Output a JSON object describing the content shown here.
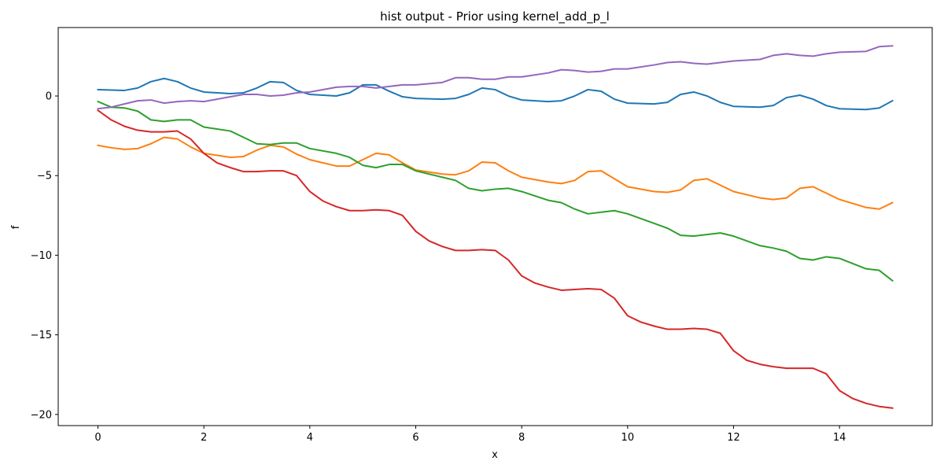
{
  "chart_data": {
    "type": "line",
    "title": "hist output - Prior using kernel_add_p_l",
    "xlabel": "x",
    "ylabel": "f",
    "xlim": [
      -0.75,
      15.75
    ],
    "ylim": [
      -20.7,
      4.3
    ],
    "xticks": [
      0,
      2,
      4,
      6,
      8,
      10,
      12,
      14
    ],
    "yticks": [
      0,
      -5,
      -10,
      -15,
      -20
    ],
    "ytick_labels": [
      "0",
      "−5",
      "−10",
      "−15",
      "−20"
    ],
    "grid": false,
    "legend": "none",
    "series": [
      {
        "color": "#1f77b4",
        "x": [
          0,
          0.5,
          0.75,
          1.0,
          1.25,
          1.5,
          1.75,
          2.0,
          2.5,
          2.75,
          3.0,
          3.25,
          3.5,
          3.75,
          4.0,
          4.5,
          4.75,
          5.0,
          5.25,
          5.5,
          5.75,
          6.0,
          6.5,
          6.75,
          7.0,
          7.25,
          7.5,
          7.75,
          8.0,
          8.5,
          8.75,
          9.0,
          9.25,
          9.5,
          9.75,
          10.0,
          10.5,
          10.75,
          11.0,
          11.25,
          11.5,
          11.75,
          12.0,
          12.5,
          12.75,
          13.0,
          13.25,
          13.5,
          13.75,
          14.0,
          14.5,
          14.75,
          15.0
        ],
        "y": [
          0.4,
          0.35,
          0.5,
          0.9,
          1.1,
          0.9,
          0.5,
          0.25,
          0.15,
          0.2,
          0.5,
          0.9,
          0.85,
          0.35,
          0.1,
          0.0,
          0.2,
          0.7,
          0.7,
          0.3,
          -0.05,
          -0.15,
          -0.2,
          -0.15,
          0.1,
          0.5,
          0.4,
          0.0,
          -0.25,
          -0.35,
          -0.3,
          0.0,
          0.4,
          0.3,
          -0.2,
          -0.45,
          -0.5,
          -0.4,
          0.1,
          0.25,
          0.0,
          -0.4,
          -0.65,
          -0.7,
          -0.6,
          -0.1,
          0.05,
          -0.2,
          -0.6,
          -0.8,
          -0.85,
          -0.75,
          -0.3
        ]
      },
      {
        "color": "#ff7f0e",
        "x": [
          0,
          0.25,
          0.5,
          0.75,
          1.0,
          1.25,
          1.5,
          1.75,
          2.0,
          2.5,
          2.75,
          3.0,
          3.25,
          3.5,
          3.75,
          4.0,
          4.5,
          4.75,
          5.0,
          5.25,
          5.5,
          5.75,
          6.0,
          6.5,
          6.75,
          7.0,
          7.25,
          7.5,
          7.75,
          8.0,
          8.5,
          8.75,
          9.0,
          9.25,
          9.5,
          9.75,
          10.0,
          10.5,
          10.75,
          11.0,
          11.25,
          11.5,
          11.75,
          12.0,
          12.5,
          12.75,
          13.0,
          13.25,
          13.5,
          13.75,
          14.0,
          14.5,
          14.75,
          15.0
        ],
        "y": [
          -3.1,
          -3.25,
          -3.35,
          -3.3,
          -3.0,
          -2.6,
          -2.7,
          -3.2,
          -3.6,
          -3.85,
          -3.8,
          -3.4,
          -3.1,
          -3.2,
          -3.65,
          -4.0,
          -4.4,
          -4.4,
          -4.0,
          -3.6,
          -3.7,
          -4.2,
          -4.65,
          -4.9,
          -4.95,
          -4.7,
          -4.15,
          -4.2,
          -4.7,
          -5.1,
          -5.4,
          -5.5,
          -5.3,
          -4.75,
          -4.7,
          -5.2,
          -5.7,
          -6.0,
          -6.05,
          -5.9,
          -5.3,
          -5.2,
          -5.6,
          -6.0,
          -6.4,
          -6.5,
          -6.4,
          -5.8,
          -5.7,
          -6.1,
          -6.5,
          -7.0,
          -7.1,
          -6.7
        ]
      },
      {
        "color": "#2ca02c",
        "x": [
          0,
          0.25,
          0.5,
          0.75,
          1.0,
          1.25,
          1.5,
          1.75,
          2.0,
          2.5,
          2.75,
          3.0,
          3.25,
          3.5,
          3.75,
          4.0,
          4.5,
          4.75,
          5.0,
          5.25,
          5.5,
          5.75,
          6.0,
          6.5,
          6.75,
          7.0,
          7.25,
          7.5,
          7.75,
          8.0,
          8.5,
          8.75,
          9.0,
          9.25,
          9.5,
          9.75,
          10.0,
          10.5,
          10.75,
          11.0,
          11.25,
          11.5,
          11.75,
          12.0,
          12.5,
          12.75,
          13.0,
          13.25,
          13.5,
          13.75,
          14.0,
          14.5,
          14.75,
          15.0
        ],
        "y": [
          -0.35,
          -0.7,
          -0.75,
          -0.95,
          -1.5,
          -1.6,
          -1.5,
          -1.5,
          -1.95,
          -2.2,
          -2.6,
          -3.0,
          -3.05,
          -2.95,
          -2.95,
          -3.3,
          -3.6,
          -3.85,
          -4.35,
          -4.5,
          -4.3,
          -4.3,
          -4.7,
          -5.1,
          -5.3,
          -5.8,
          -5.95,
          -5.85,
          -5.8,
          -6.0,
          -6.55,
          -6.7,
          -7.1,
          -7.4,
          -7.3,
          -7.2,
          -7.4,
          -8.0,
          -8.3,
          -8.75,
          -8.8,
          -8.7,
          -8.6,
          -8.8,
          -9.4,
          -9.55,
          -9.75,
          -10.2,
          -10.3,
          -10.1,
          -10.2,
          -10.85,
          -10.95,
          -11.6
        ]
      },
      {
        "color": "#d62728",
        "x": [
          0,
          0.25,
          0.5,
          0.75,
          1.0,
          1.25,
          1.5,
          1.75,
          2.0,
          2.25,
          2.5,
          2.75,
          3.0,
          3.25,
          3.5,
          3.75,
          4.0,
          4.25,
          4.5,
          4.75,
          5.0,
          5.25,
          5.5,
          5.75,
          6.0,
          6.25,
          6.5,
          6.75,
          7.0,
          7.25,
          7.5,
          7.75,
          8.0,
          8.25,
          8.5,
          8.75,
          9.0,
          9.25,
          9.5,
          9.75,
          10.0,
          10.25,
          10.5,
          10.75,
          11.0,
          11.25,
          11.5,
          11.75,
          12.0,
          12.25,
          12.5,
          12.75,
          13.0,
          13.25,
          13.5,
          13.75,
          14.0,
          14.25,
          14.5,
          14.75,
          15.0
        ],
        "y": [
          -0.9,
          -1.5,
          -1.9,
          -2.15,
          -2.25,
          -2.25,
          -2.2,
          -2.7,
          -3.6,
          -4.2,
          -4.5,
          -4.75,
          -4.75,
          -4.7,
          -4.7,
          -5.0,
          -6.0,
          -6.6,
          -6.95,
          -7.2,
          -7.2,
          -7.15,
          -7.2,
          -7.5,
          -8.5,
          -9.1,
          -9.45,
          -9.7,
          -9.7,
          -9.65,
          -9.7,
          -10.3,
          -11.3,
          -11.75,
          -12.0,
          -12.2,
          -12.15,
          -12.1,
          -12.15,
          -12.7,
          -13.8,
          -14.2,
          -14.45,
          -14.65,
          -14.65,
          -14.6,
          -14.65,
          -14.9,
          -16.0,
          -16.6,
          -16.85,
          -17.0,
          -17.1,
          -17.1,
          -17.1,
          -17.45,
          -18.5,
          -19.0,
          -19.3,
          -19.5,
          -19.6
        ]
      },
      {
        "color": "#9467bd",
        "x": [
          0,
          0.25,
          0.5,
          0.75,
          1.0,
          1.25,
          1.5,
          1.75,
          2.0,
          2.5,
          2.75,
          3.0,
          3.25,
          3.5,
          3.75,
          4.0,
          4.5,
          4.75,
          5.0,
          5.25,
          5.5,
          5.75,
          6.0,
          6.5,
          6.75,
          7.0,
          7.25,
          7.5,
          7.75,
          8.0,
          8.5,
          8.75,
          9.0,
          9.25,
          9.5,
          9.75,
          10.0,
          10.5,
          10.75,
          11.0,
          11.25,
          11.5,
          11.75,
          12.0,
          12.5,
          12.75,
          13.0,
          13.25,
          13.5,
          13.75,
          14.0,
          14.5,
          14.75,
          15.0
        ],
        "y": [
          -0.8,
          -0.7,
          -0.5,
          -0.3,
          -0.25,
          -0.45,
          -0.35,
          -0.3,
          -0.35,
          -0.05,
          0.1,
          0.1,
          0.0,
          0.05,
          0.2,
          0.25,
          0.55,
          0.6,
          0.6,
          0.5,
          0.6,
          0.7,
          0.7,
          0.85,
          1.15,
          1.15,
          1.05,
          1.05,
          1.2,
          1.2,
          1.45,
          1.65,
          1.6,
          1.5,
          1.55,
          1.7,
          1.7,
          1.95,
          2.1,
          2.15,
          2.05,
          2.0,
          2.1,
          2.2,
          2.3,
          2.55,
          2.65,
          2.55,
          2.5,
          2.65,
          2.75,
          2.8,
          3.1,
          3.15
        ]
      }
    ]
  }
}
